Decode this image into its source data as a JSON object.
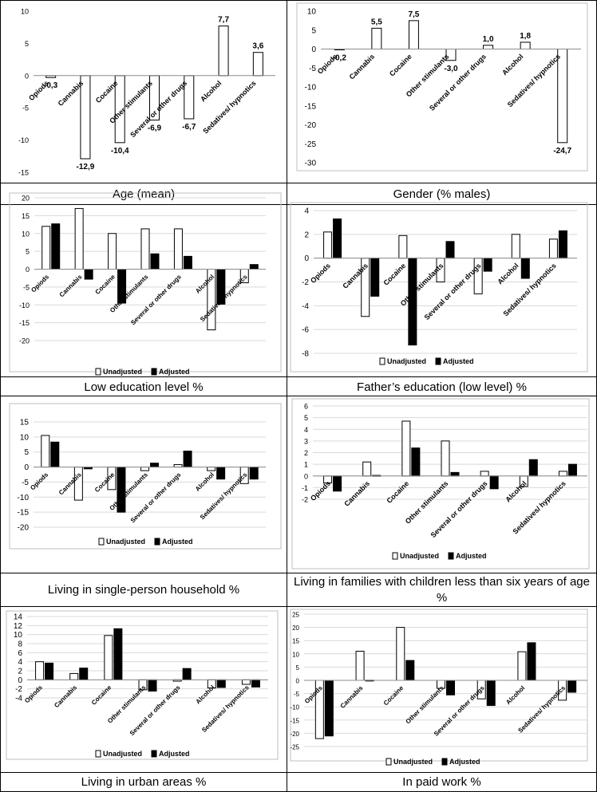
{
  "colors": {
    "adjusted": "#000000",
    "unadjusted": "#ffffff",
    "grid": "#d9d9d9",
    "frame": "#bfbfbf"
  },
  "captions": [
    "Age (mean)",
    "Gender (% males)",
    "Low education level %",
    "Father’s education (low level) %",
    "Living in single-person household %",
    "Living in families with children less than six years of age %",
    "Living in urban areas %",
    "In paid work %"
  ],
  "legend": {
    "unadjusted": "Unadjusted",
    "adjusted": "Adjusted"
  },
  "chart_data": [
    {
      "type": "bar",
      "categories": [
        "Opiods",
        "Cannabis",
        "Cocaine",
        "Other stimulants",
        "Several or other drugs",
        "Alcohol",
        "Sedatives/ hypnotics"
      ],
      "series": [
        {
          "values": [
            -0.3,
            -12.9,
            -10.4,
            -6.9,
            -6.7,
            7.7,
            3.6
          ]
        }
      ],
      "data_labels": [
        "-0,3",
        "-12,9",
        "-10,4",
        "-6,9",
        "-6,7",
        "7,7",
        "3,6"
      ],
      "yticks": [
        "10",
        "5",
        "0",
        "-5",
        "-10",
        "-15"
      ],
      "ylim": [
        -15,
        10
      ],
      "grid": false
    },
    {
      "type": "bar",
      "categories": [
        "Opiods",
        "Cannabis",
        "Cocaine",
        "Other stimulants",
        "Several or other drugs",
        "Alcohol",
        "Sedatives/ hypnotics"
      ],
      "series": [
        {
          "values": [
            -0.2,
            5.5,
            7.5,
            -3.0,
            1.0,
            1.8,
            -24.7
          ]
        }
      ],
      "data_labels": [
        "-0,2",
        "5,5",
        "7,5",
        "-3,0",
        "1,0",
        "1,8",
        "-24,7"
      ],
      "yticks": [
        "10",
        "5",
        "0",
        "-5",
        "-10",
        "-15",
        "-20",
        "-25",
        "-30"
      ],
      "ylim": [
        -30,
        10
      ],
      "grid": false
    },
    {
      "type": "bar",
      "categories": [
        "Opiods",
        "Cannabis",
        "Cocaine",
        "Other stimulants",
        "Several or other drugs",
        "Alcohol",
        "Sedatives/ hypnotics"
      ],
      "series": [
        {
          "name": "Unadjusted",
          "values": [
            12.0,
            17.0,
            10.0,
            11.3,
            11.3,
            -17.0,
            -3.8
          ]
        },
        {
          "name": "Adjusted",
          "values": [
            12.7,
            -2.8,
            -9.5,
            4.3,
            3.6,
            -9.8,
            1.3
          ]
        }
      ],
      "yticks": [
        "20",
        "15",
        "10",
        "5",
        "0",
        "-5",
        "-10",
        "-15",
        "-20"
      ],
      "ylim": [
        -20,
        20
      ],
      "grid": true,
      "legend": "bottom"
    },
    {
      "type": "bar",
      "categories": [
        "Opiods",
        "Cannabis",
        "Cocaine",
        "Other stimulants",
        "Several or other drugs",
        "Alcohol",
        "Sedatives/ hypnotics"
      ],
      "series": [
        {
          "name": "Unadjusted",
          "values": [
            2.2,
            -4.9,
            1.9,
            -2.0,
            -3.0,
            2.0,
            1.6
          ]
        },
        {
          "name": "Adjusted",
          "values": [
            3.3,
            -3.2,
            -7.3,
            1.4,
            -1.1,
            -1.7,
            2.3
          ]
        }
      ],
      "yticks": [
        "4",
        "2",
        "0",
        "-2",
        "-4",
        "-6",
        "-8"
      ],
      "ylim": [
        -8,
        4
      ],
      "grid": true,
      "legend": "bottom"
    },
    {
      "type": "bar",
      "categories": [
        "Opiods",
        "Cannabis",
        "Cocaine",
        "Other stimulants",
        "Several or other drugs",
        "Alcohol",
        "Sedatives/ hypnotics"
      ],
      "series": [
        {
          "name": "Unadjusted",
          "values": [
            10.5,
            -11.0,
            -7.5,
            -1.2,
            0.8,
            -1.2,
            -5.5
          ]
        },
        {
          "name": "Adjusted",
          "values": [
            8.3,
            -0.6,
            -15.0,
            1.3,
            5.3,
            -4.0,
            -4.0
          ]
        }
      ],
      "yticks": [
        "15",
        "10",
        "5",
        "0",
        "-5",
        "-10",
        "-15",
        "-20"
      ],
      "ylim": [
        -20,
        15
      ],
      "grid": true,
      "legend": "bottom"
    },
    {
      "type": "bar",
      "categories": [
        "Opiods",
        "Cannabis",
        "Cocaine",
        "Other stimulants",
        "Several or other drugs",
        "Alcohol",
        "Sedatives/ hypnotics"
      ],
      "series": [
        {
          "name": "Unadjusted",
          "values": [
            -0.6,
            1.2,
            4.7,
            3.0,
            0.4,
            -0.9,
            0.4
          ]
        },
        {
          "name": "Adjusted",
          "values": [
            -1.3,
            0.05,
            2.4,
            0.3,
            -1.1,
            1.4,
            1.0
          ]
        }
      ],
      "yticks": [
        "6",
        "5",
        "4",
        "3",
        "2",
        "1",
        "0",
        "-1",
        "-2"
      ],
      "ylim": [
        -2,
        6
      ],
      "grid": true,
      "legend": "bottom"
    },
    {
      "type": "bar",
      "categories": [
        "Opiods",
        "Cannabis",
        "Cocaine",
        "Other stimulants",
        "Several or other drugs",
        "Alcohol",
        "Sedatives/ hypnotics"
      ],
      "series": [
        {
          "name": "Unadjusted",
          "values": [
            4.0,
            1.4,
            9.8,
            -2.2,
            -0.3,
            -1.8,
            -1.0
          ]
        },
        {
          "name": "Adjusted",
          "values": [
            3.7,
            2.6,
            11.3,
            -2.5,
            2.5,
            -1.7,
            -1.6
          ]
        }
      ],
      "yticks": [
        "14",
        "12",
        "10",
        "8",
        "6",
        "4",
        "2",
        "0",
        "-2",
        "-4"
      ],
      "ylim": [
        -4,
        14
      ],
      "grid": true,
      "legend": "bottom"
    },
    {
      "type": "bar",
      "categories": [
        "Opiods",
        "Cannabis",
        "Cocaine",
        "Other stimulants",
        "Several or other drugs",
        "Alcohol",
        "Sedatives/ hypnotics"
      ],
      "series": [
        {
          "name": "Unadjusted",
          "values": [
            -22.0,
            11.0,
            20.0,
            -3.0,
            -7.0,
            10.8,
            -7.5
          ]
        },
        {
          "name": "Adjusted",
          "values": [
            -21.0,
            0.05,
            7.5,
            -5.5,
            -9.5,
            14.2,
            -4.5
          ]
        }
      ],
      "yticks": [
        "25",
        "20",
        "15",
        "10",
        "5",
        "0",
        "-5",
        "-10",
        "-15",
        "-20",
        "-25"
      ],
      "ylim": [
        -25,
        25
      ],
      "grid": true,
      "legend": "bottom"
    }
  ]
}
